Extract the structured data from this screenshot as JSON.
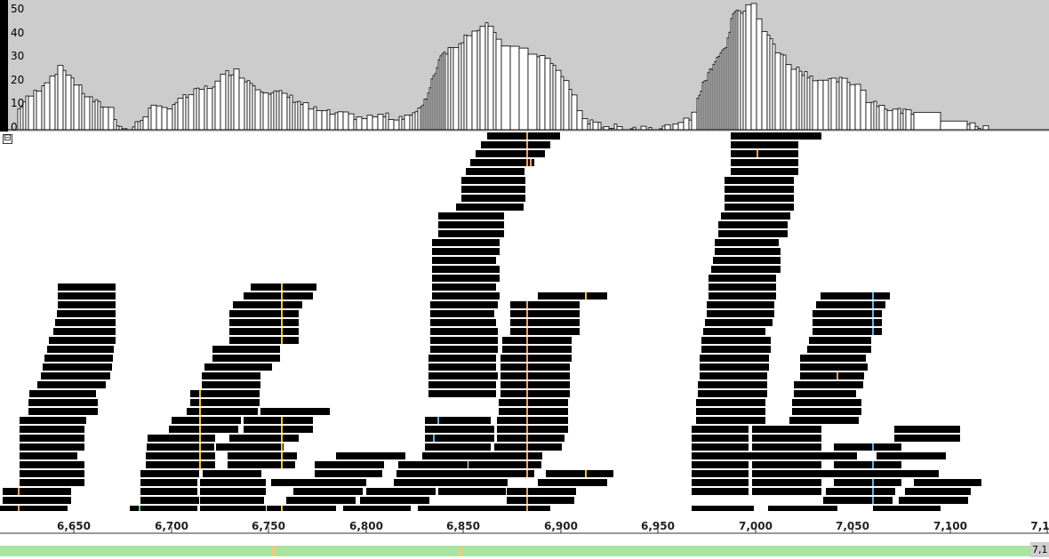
{
  "coverage": {
    "axis_labels": [
      "50",
      "40",
      "30",
      "20",
      "10",
      "0"
    ],
    "max": 53
  },
  "ruler": {
    "ticks": [
      "6,650",
      "6,700",
      "6,750",
      "6,800",
      "6,850",
      "6,900",
      "6,950",
      "7,000",
      "7,050",
      "7,100",
      "7,1"
    ],
    "start_position": 6612,
    "end_position": 7151
  },
  "edge_label": "7,1",
  "collapse_toggle": "⊟",
  "colors": {
    "read": "#000000",
    "mismatch_orange": "#f3a05a",
    "mismatch_yellow": "#f5c518",
    "mismatch_blue": "#5bb6e8",
    "mismatch_green": "#66cc66",
    "coverage_bg": "#cccccc",
    "coverage_bar": "#ffffff"
  }
}
